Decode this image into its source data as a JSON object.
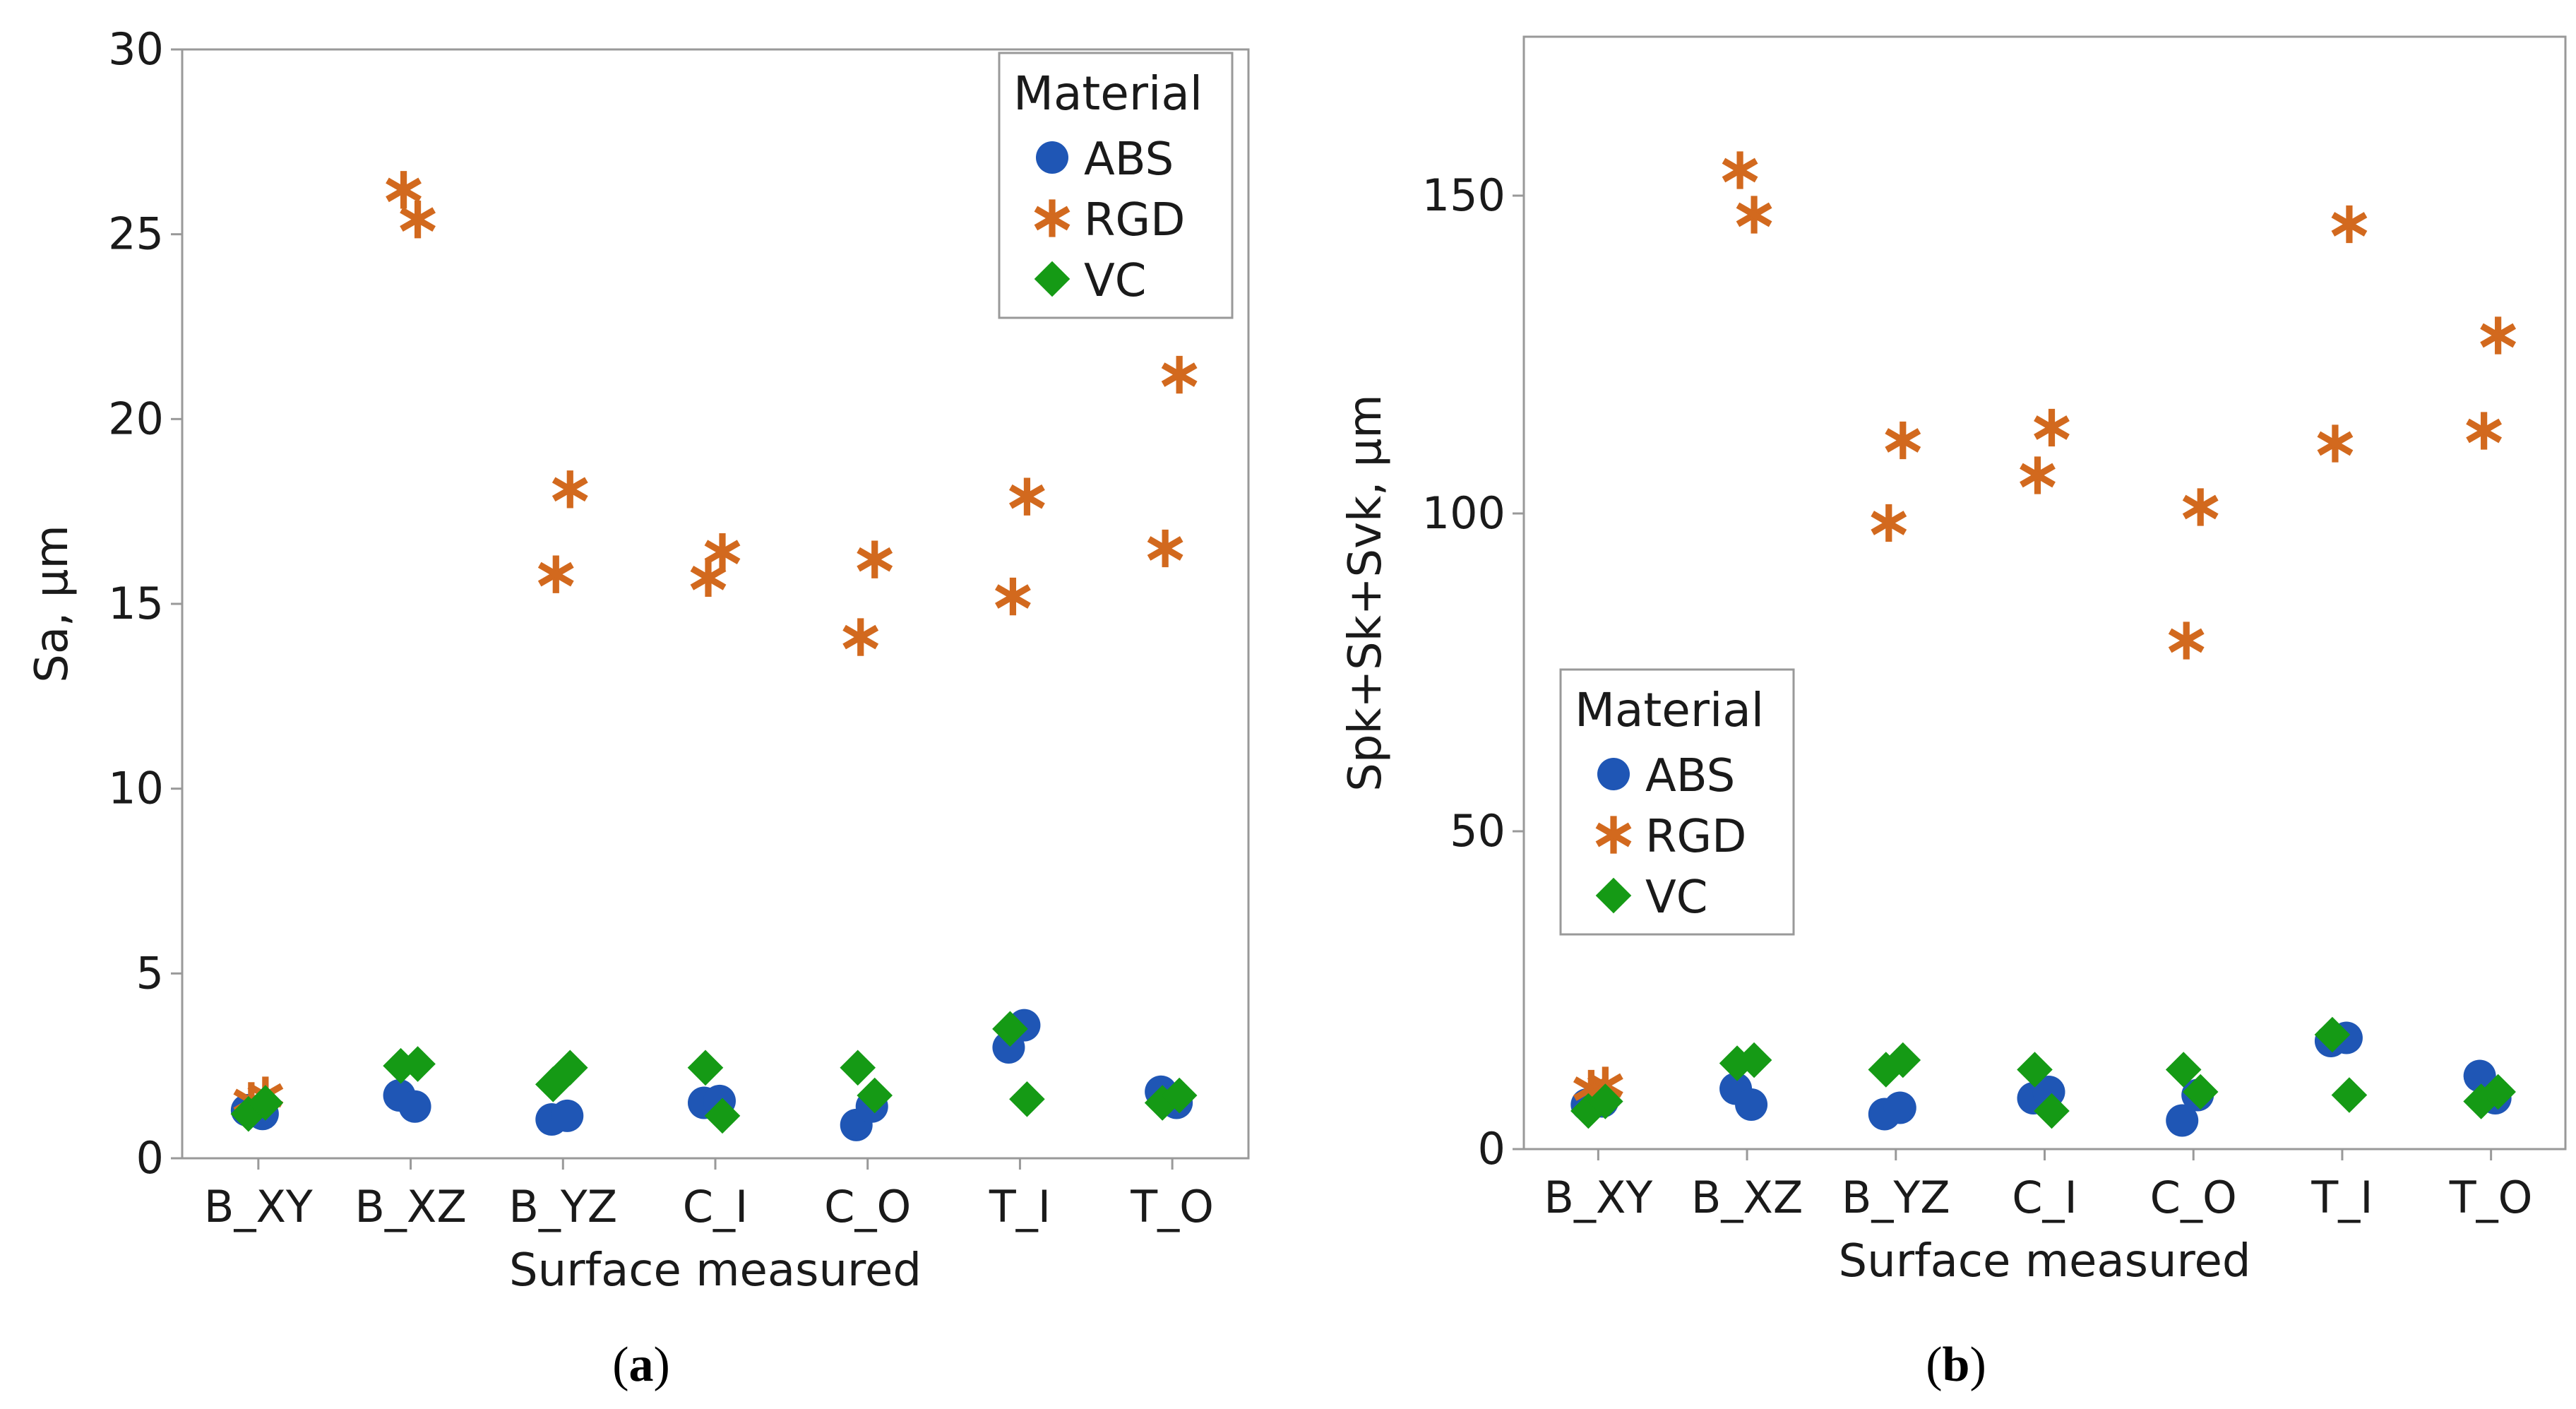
{
  "colors": {
    "ABS": "#1f56b5",
    "RGD": "#d2691e",
    "VC": "#159a15",
    "frame": "#999999",
    "text": "#1a1a1a"
  },
  "chart_data": [
    {
      "type": "scatter",
      "panel_label_open": "(",
      "panel_label_letter": "a",
      "panel_label_close": ")",
      "xlabel": "Surface measured",
      "ylabel": "Sa, µm",
      "categories": [
        "B_XY",
        "B_XZ",
        "B_YZ",
        "C_I",
        "C_O",
        "T_I",
        "T_O"
      ],
      "ylim": [
        0,
        30
      ],
      "yticks": [
        0,
        5,
        10,
        15,
        20,
        25,
        30
      ],
      "legend": {
        "title": "Material",
        "position": "top-right",
        "entries": [
          "ABS",
          "RGD",
          "VC"
        ]
      },
      "series": [
        {
          "name": "ABS",
          "marker": "circle",
          "points": [
            {
              "cat": "B_XY",
              "y": 1.3
            },
            {
              "cat": "B_XY",
              "y": 1.2
            },
            {
              "cat": "B_XZ",
              "y": 1.7
            },
            {
              "cat": "B_XZ",
              "y": 1.4
            },
            {
              "cat": "B_YZ",
              "y": 1.05
            },
            {
              "cat": "B_YZ",
              "y": 1.15
            },
            {
              "cat": "C_I",
              "y": 1.5
            },
            {
              "cat": "C_I",
              "y": 1.55
            },
            {
              "cat": "C_O",
              "y": 0.9
            },
            {
              "cat": "C_O",
              "y": 1.4
            },
            {
              "cat": "T_I",
              "y": 3.0
            },
            {
              "cat": "T_I",
              "y": 3.6
            },
            {
              "cat": "T_O",
              "y": 1.8
            },
            {
              "cat": "T_O",
              "y": 1.5
            }
          ]
        },
        {
          "name": "RGD",
          "marker": "asterisk",
          "points": [
            {
              "cat": "B_XY",
              "y": 1.55
            },
            {
              "cat": "B_XY",
              "y": 1.7
            },
            {
              "cat": "B_XZ",
              "y": 26.2
            },
            {
              "cat": "B_XZ",
              "y": 25.4
            },
            {
              "cat": "B_YZ",
              "y": 15.8
            },
            {
              "cat": "B_YZ",
              "y": 18.1
            },
            {
              "cat": "C_I",
              "y": 15.7
            },
            {
              "cat": "C_I",
              "y": 16.4
            },
            {
              "cat": "C_O",
              "y": 14.1
            },
            {
              "cat": "C_O",
              "y": 16.2
            },
            {
              "cat": "T_I",
              "y": 15.2
            },
            {
              "cat": "T_I",
              "y": 17.9
            },
            {
              "cat": "T_O",
              "y": 16.5
            },
            {
              "cat": "T_O",
              "y": 21.2
            }
          ]
        },
        {
          "name": "VC",
          "marker": "diamond",
          "points": [
            {
              "cat": "B_XY",
              "y": 1.2
            },
            {
              "cat": "B_XY",
              "y": 1.5
            },
            {
              "cat": "B_XZ",
              "y": 2.5
            },
            {
              "cat": "B_XZ",
              "y": 2.55
            },
            {
              "cat": "B_YZ",
              "y": 2.0
            },
            {
              "cat": "B_YZ",
              "y": 2.45
            },
            {
              "cat": "C_I",
              "y": 2.45
            },
            {
              "cat": "C_I",
              "y": 1.15
            },
            {
              "cat": "C_O",
              "y": 2.45
            },
            {
              "cat": "C_O",
              "y": 1.7
            },
            {
              "cat": "T_I",
              "y": 3.5
            },
            {
              "cat": "T_I",
              "y": 1.6
            },
            {
              "cat": "T_O",
              "y": 1.5
            },
            {
              "cat": "T_O",
              "y": 1.7
            }
          ]
        }
      ]
    },
    {
      "type": "scatter",
      "panel_label_open": "(",
      "panel_label_letter": "b",
      "panel_label_close": ")",
      "xlabel": "Surface measured",
      "ylabel": "Spk+Sk+Svk, µm",
      "categories": [
        "B_XY",
        "B_XZ",
        "B_YZ",
        "C_I",
        "C_O",
        "T_I",
        "T_O"
      ],
      "ylim": [
        0,
        175
      ],
      "yticks": [
        0,
        50,
        100,
        150
      ],
      "legend": {
        "title": "Material",
        "position": "middle-left",
        "entries": [
          "ABS",
          "RGD",
          "VC"
        ]
      },
      "series": [
        {
          "name": "ABS",
          "marker": "circle",
          "points": [
            {
              "cat": "B_XY",
              "y": 7
            },
            {
              "cat": "B_XY",
              "y": 7.5
            },
            {
              "cat": "B_XZ",
              "y": 9.5
            },
            {
              "cat": "B_XZ",
              "y": 7
            },
            {
              "cat": "B_YZ",
              "y": 5.5
            },
            {
              "cat": "B_YZ",
              "y": 6.5
            },
            {
              "cat": "C_I",
              "y": 8
            },
            {
              "cat": "C_I",
              "y": 9
            },
            {
              "cat": "C_O",
              "y": 4.5
            },
            {
              "cat": "C_O",
              "y": 8.5
            },
            {
              "cat": "T_I",
              "y": 17
            },
            {
              "cat": "T_I",
              "y": 17.5
            },
            {
              "cat": "T_O",
              "y": 11.5
            },
            {
              "cat": "T_O",
              "y": 8
            }
          ]
        },
        {
          "name": "RGD",
          "marker": "asterisk",
          "points": [
            {
              "cat": "B_XY",
              "y": 9.5
            },
            {
              "cat": "B_XY",
              "y": 10
            },
            {
              "cat": "B_XZ",
              "y": 154
            },
            {
              "cat": "B_XZ",
              "y": 147
            },
            {
              "cat": "B_YZ",
              "y": 98.5
            },
            {
              "cat": "B_YZ",
              "y": 111.5
            },
            {
              "cat": "C_I",
              "y": 106
            },
            {
              "cat": "C_I",
              "y": 113.5
            },
            {
              "cat": "C_O",
              "y": 80
            },
            {
              "cat": "C_O",
              "y": 101
            },
            {
              "cat": "T_I",
              "y": 111
            },
            {
              "cat": "T_I",
              "y": 145.5
            },
            {
              "cat": "T_O",
              "y": 113
            },
            {
              "cat": "T_O",
              "y": 128
            }
          ]
        },
        {
          "name": "VC",
          "marker": "diamond",
          "points": [
            {
              "cat": "B_XY",
              "y": 6
            },
            {
              "cat": "B_XY",
              "y": 7.5
            },
            {
              "cat": "B_XZ",
              "y": 13.5
            },
            {
              "cat": "B_XZ",
              "y": 14
            },
            {
              "cat": "B_YZ",
              "y": 12.5
            },
            {
              "cat": "B_YZ",
              "y": 14
            },
            {
              "cat": "C_I",
              "y": 12.5
            },
            {
              "cat": "C_I",
              "y": 6
            },
            {
              "cat": "C_O",
              "y": 12.5
            },
            {
              "cat": "C_O",
              "y": 9
            },
            {
              "cat": "T_I",
              "y": 18
            },
            {
              "cat": "T_I",
              "y": 8.5
            },
            {
              "cat": "T_O",
              "y": 7.5
            },
            {
              "cat": "T_O",
              "y": 9
            }
          ]
        }
      ]
    }
  ]
}
